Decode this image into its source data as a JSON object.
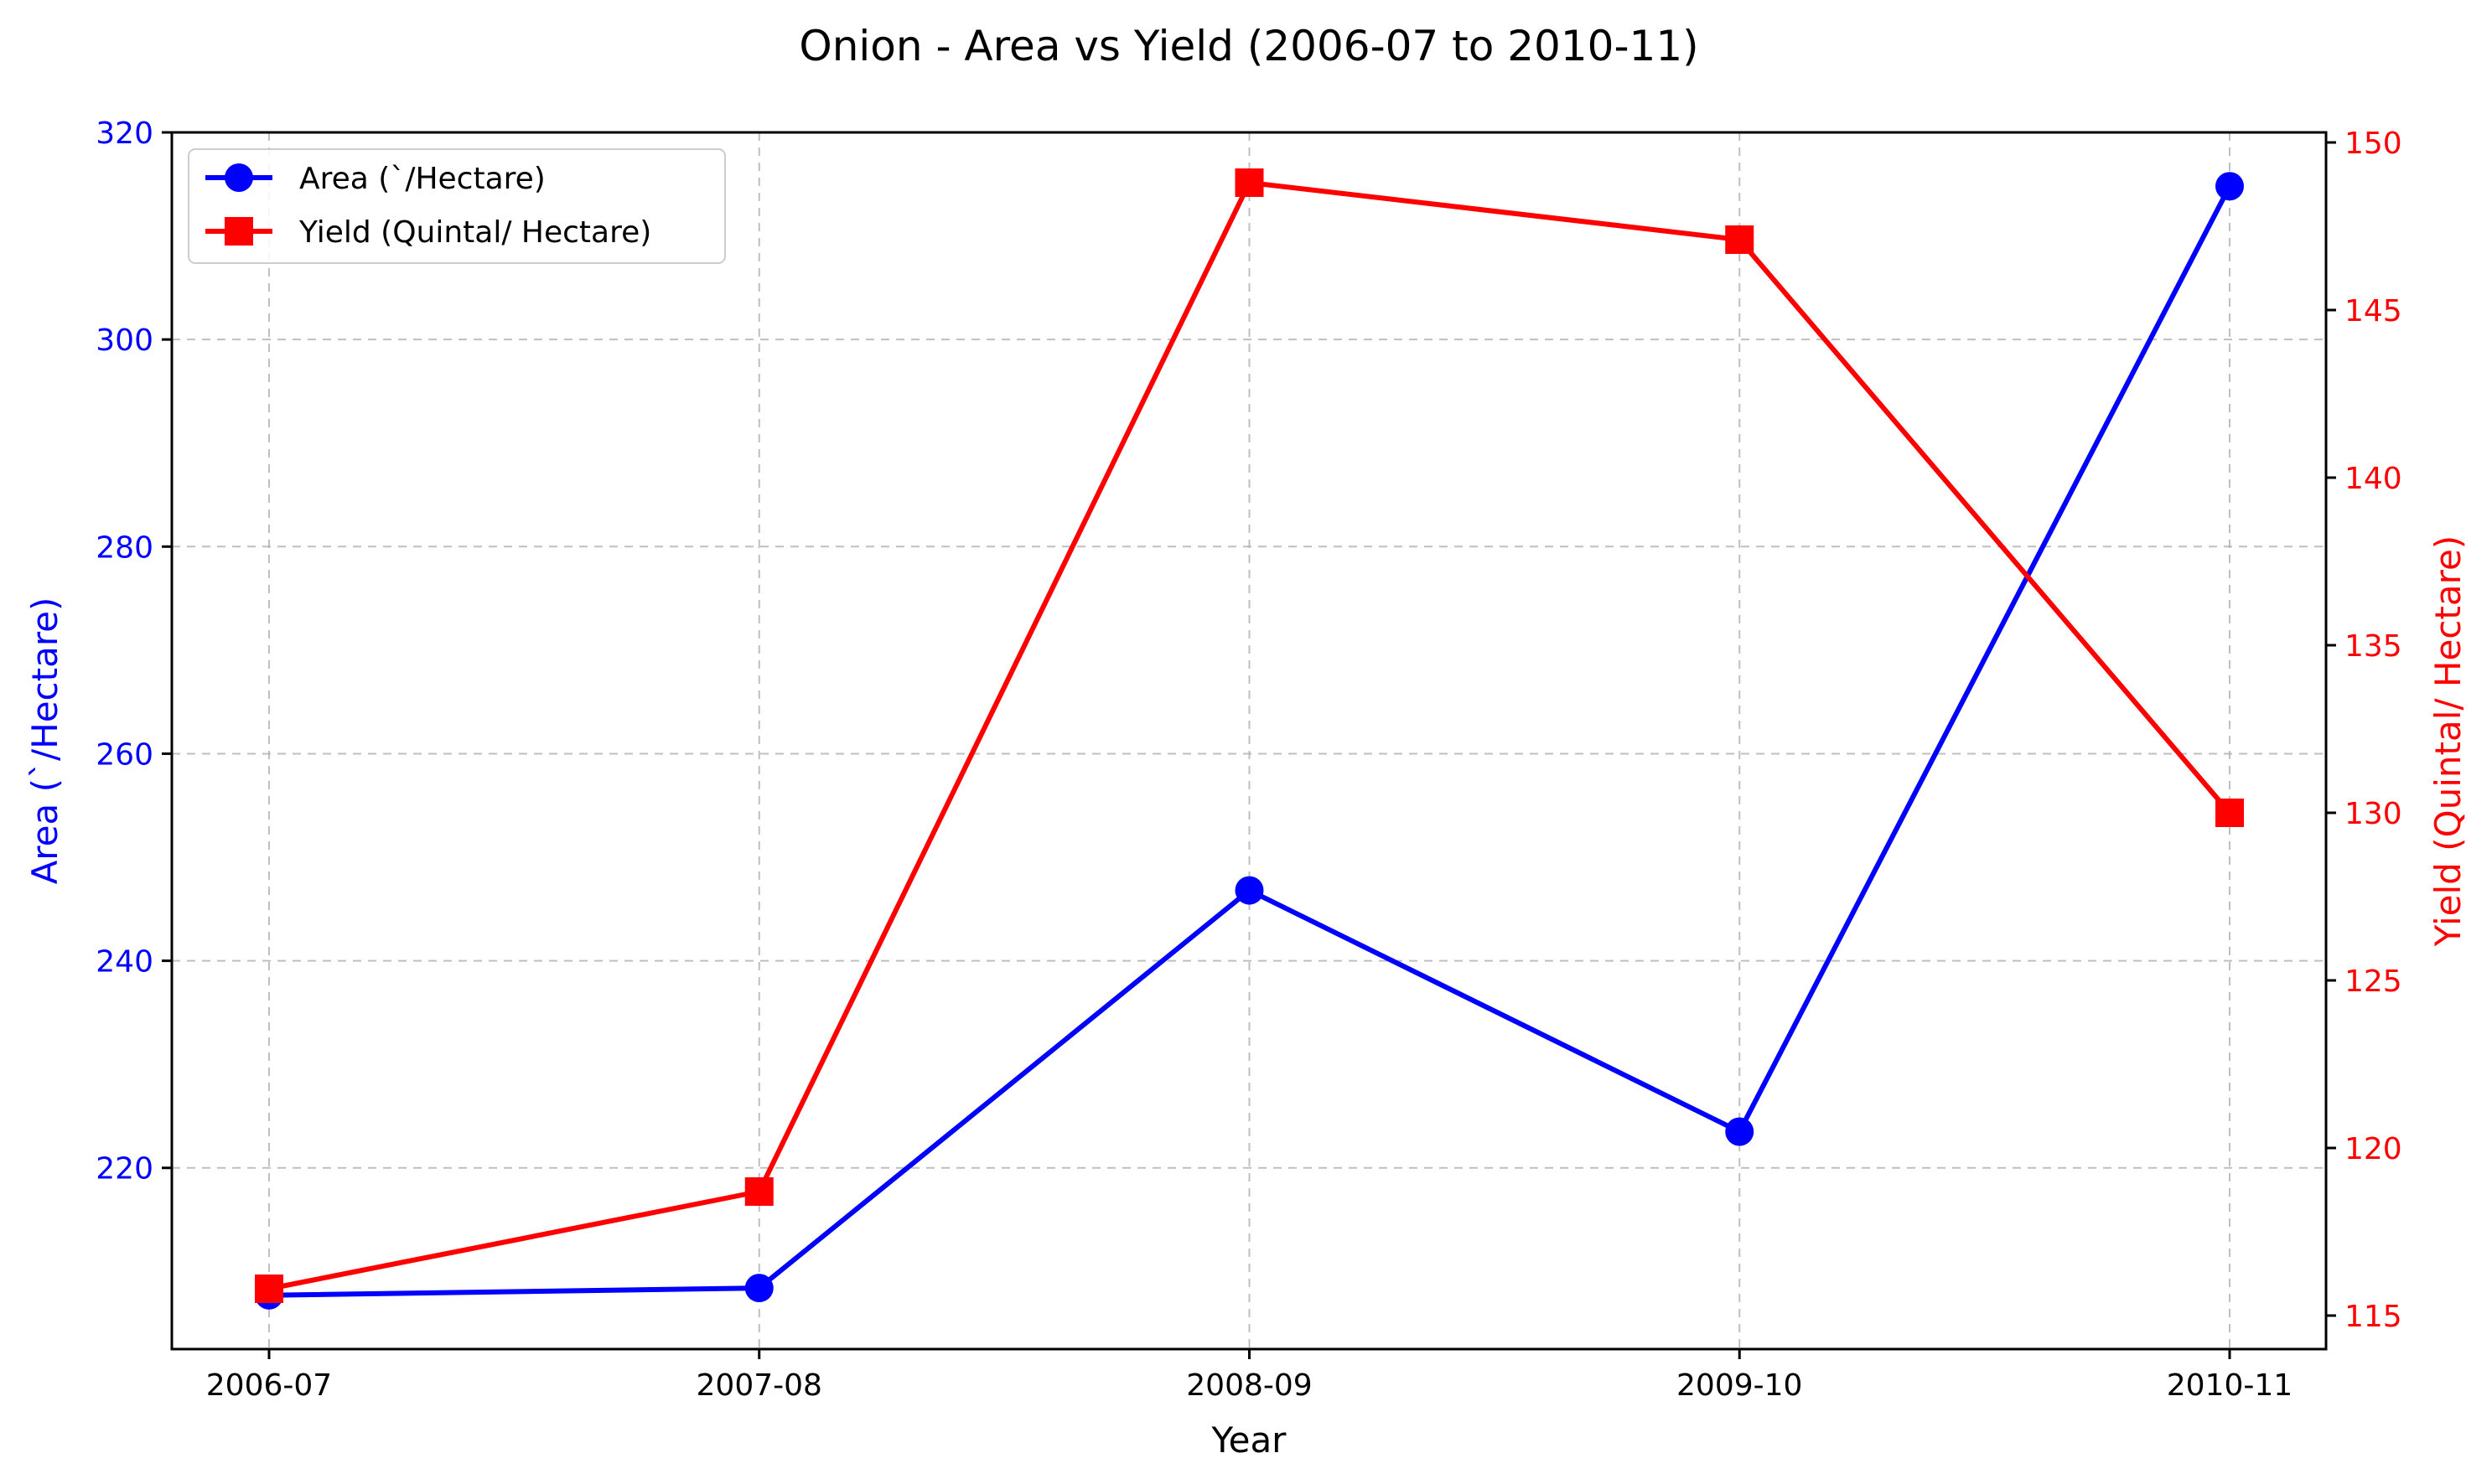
{
  "chart_data": {
    "type": "line",
    "title": "Onion - Area vs Yield (2006-07 to 2010-11)",
    "xlabel": "Year",
    "categories": [
      "2006-07",
      "2007-08",
      "2008-09",
      "2009-10",
      "2010-11"
    ],
    "grid": true,
    "legend_position": "top-left",
    "left_axis": {
      "label": "Area (`/Hectare)",
      "color": "#0000ff",
      "ylim": [
        202.5,
        320
      ],
      "ticks": [
        220,
        240,
        260,
        280,
        300,
        320
      ]
    },
    "right_axis": {
      "label": "Yield (Quintal/ Hectare)",
      "color": "#ff0000",
      "ylim": [
        114.0,
        150.3
      ],
      "ticks": [
        115,
        120,
        125,
        130,
        135,
        140,
        145,
        150
      ]
    },
    "series": [
      {
        "name": "Area (`/Hectare)",
        "axis": "left",
        "color": "#0000ff",
        "marker": "circle",
        "values": [
          207.7,
          208.4,
          246.8,
          223.5,
          314.8
        ]
      },
      {
        "name": "Yield (Quintal/ Hectare)",
        "axis": "right",
        "color": "#ff0000",
        "marker": "square",
        "values": [
          115.8,
          118.7,
          148.8,
          147.1,
          130.0
        ]
      }
    ]
  }
}
